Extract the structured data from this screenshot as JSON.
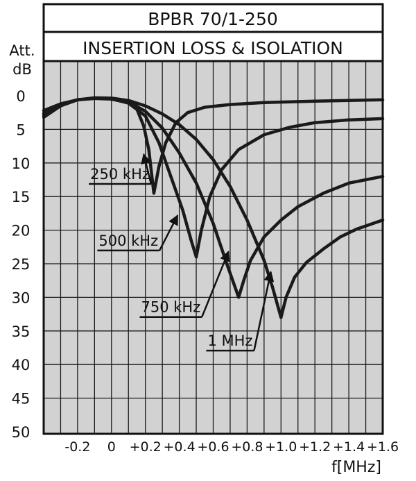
{
  "chart_data": {
    "type": "line",
    "title": "BPBR 70/1-250",
    "subtitle": "INSERTION LOSS & ISOLATION",
    "ylabel_line1": "Att.",
    "ylabel_line2": "dB",
    "xlabel": "f[MHz]",
    "xlim": [
      -0.4,
      1.6
    ],
    "ylim": [
      0,
      50
    ],
    "y_inverted": true,
    "grid": true,
    "background_color": "#d2d2d2",
    "line_color": "#1a1a1a",
    "x_ticks": [
      -0.2,
      0,
      0.2,
      0.4,
      0.6,
      0.8,
      1.0,
      1.2,
      1.4,
      1.6
    ],
    "x_tick_labels": [
      "-0.2",
      "0",
      "+0.2",
      "+0.4",
      "+0.6",
      "+0.8",
      "+1.0",
      "+1.2",
      "+1.4",
      "+1.6"
    ],
    "y_ticks": [
      0,
      5,
      10,
      15,
      20,
      25,
      30,
      35,
      40,
      45,
      50
    ],
    "y_tick_labels": [
      "0",
      "5",
      "10",
      "15",
      "20",
      "25",
      "30",
      "35",
      "40",
      "45",
      "50"
    ],
    "series": [
      {
        "name": "250 kHz",
        "label_x": 0.05,
        "label_y": 12.4,
        "points": [
          [
            -0.4,
            2.2
          ],
          [
            -0.3,
            1.2
          ],
          [
            -0.2,
            0.6
          ],
          [
            -0.1,
            0.4
          ],
          [
            0.0,
            0.5
          ],
          [
            0.1,
            1.0
          ],
          [
            0.15,
            2.0
          ],
          [
            0.19,
            4.5
          ],
          [
            0.22,
            8.0
          ],
          [
            0.25,
            14.5
          ],
          [
            0.28,
            10.5
          ],
          [
            0.32,
            7.0
          ],
          [
            0.38,
            4.0
          ],
          [
            0.45,
            2.5
          ],
          [
            0.55,
            1.7
          ],
          [
            0.7,
            1.3
          ],
          [
            0.9,
            1.0
          ],
          [
            1.2,
            0.8
          ],
          [
            1.6,
            0.6
          ]
        ]
      },
      {
        "name": "500 kHz",
        "label_x": 0.1,
        "label_y": 22.3,
        "points": [
          [
            -0.4,
            2.6
          ],
          [
            -0.3,
            1.3
          ],
          [
            -0.2,
            0.6
          ],
          [
            -0.1,
            0.35
          ],
          [
            0.0,
            0.45
          ],
          [
            0.1,
            1.1
          ],
          [
            0.2,
            3.0
          ],
          [
            0.28,
            7.0
          ],
          [
            0.35,
            12.0
          ],
          [
            0.42,
            17.0
          ],
          [
            0.47,
            21.5
          ],
          [
            0.5,
            24.0
          ],
          [
            0.53,
            20.0
          ],
          [
            0.58,
            15.0
          ],
          [
            0.65,
            11.0
          ],
          [
            0.75,
            8.0
          ],
          [
            0.9,
            5.8
          ],
          [
            1.05,
            4.7
          ],
          [
            1.2,
            4.0
          ],
          [
            1.4,
            3.6
          ],
          [
            1.6,
            3.4
          ]
        ]
      },
      {
        "name": "750 kHz",
        "label_x": 0.35,
        "label_y": 32.2,
        "points": [
          [
            -0.4,
            2.9
          ],
          [
            -0.3,
            1.4
          ],
          [
            -0.2,
            0.6
          ],
          [
            -0.1,
            0.35
          ],
          [
            0.0,
            0.4
          ],
          [
            0.1,
            0.9
          ],
          [
            0.2,
            2.3
          ],
          [
            0.3,
            4.8
          ],
          [
            0.4,
            8.5
          ],
          [
            0.5,
            13.0
          ],
          [
            0.6,
            19.0
          ],
          [
            0.68,
            25.0
          ],
          [
            0.75,
            30.0
          ],
          [
            0.78,
            27.5
          ],
          [
            0.82,
            24.5
          ],
          [
            0.9,
            21.0
          ],
          [
            1.0,
            18.5
          ],
          [
            1.1,
            16.5
          ],
          [
            1.25,
            14.5
          ],
          [
            1.4,
            13.0
          ],
          [
            1.6,
            12.0
          ]
        ]
      },
      {
        "name": "1 MHz",
        "label_x": 0.7,
        "label_y": 37.2,
        "points": [
          [
            -0.4,
            3.2
          ],
          [
            -0.3,
            1.5
          ],
          [
            -0.2,
            0.6
          ],
          [
            -0.1,
            0.3
          ],
          [
            0.0,
            0.35
          ],
          [
            0.1,
            0.7
          ],
          [
            0.2,
            1.5
          ],
          [
            0.3,
            2.7
          ],
          [
            0.4,
            4.3
          ],
          [
            0.5,
            6.5
          ],
          [
            0.6,
            9.5
          ],
          [
            0.7,
            13.5
          ],
          [
            0.8,
            18.5
          ],
          [
            0.9,
            24.5
          ],
          [
            0.95,
            28.5
          ],
          [
            1.0,
            33.0
          ],
          [
            1.03,
            30.0
          ],
          [
            1.08,
            27.0
          ],
          [
            1.15,
            24.8
          ],
          [
            1.25,
            22.8
          ],
          [
            1.35,
            21.0
          ],
          [
            1.45,
            19.8
          ],
          [
            1.6,
            18.5
          ]
        ]
      }
    ]
  }
}
